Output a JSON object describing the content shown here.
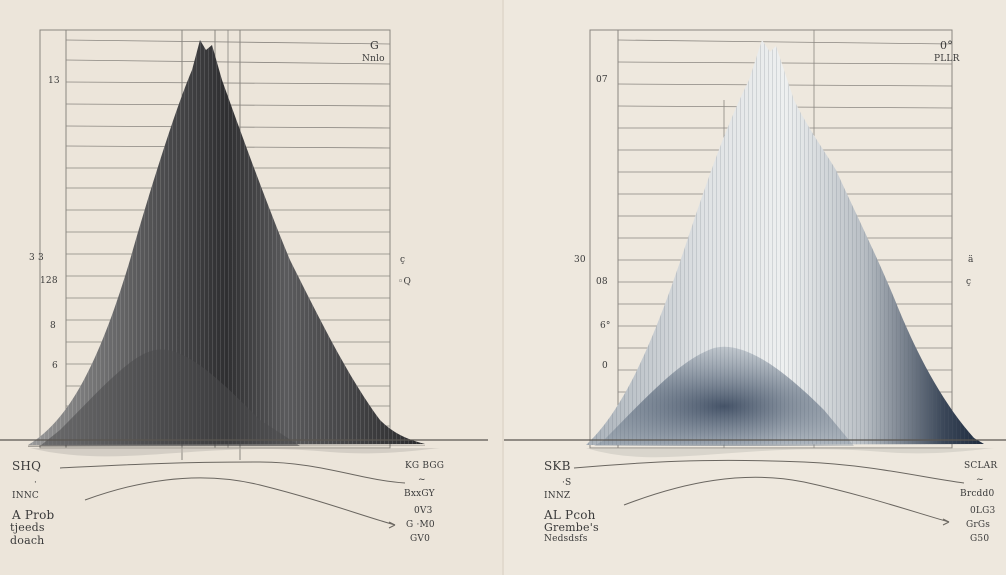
{
  "left": {
    "top_right": [
      "G",
      "Nnlo"
    ],
    "left_ticks": [
      "13",
      "3 3",
      "128",
      "8",
      "6"
    ],
    "right_ticks": [
      "ç",
      "◦Q"
    ],
    "bottom_left": [
      "SHQ",
      "·",
      "INNC",
      "A Prob",
      "tjeeds",
      "doach"
    ],
    "bottom_right": [
      "KG BGG",
      "~",
      "BxxGY",
      "0V3",
      "G ·M0",
      "GV0"
    ]
  },
  "right": {
    "top_right": [
      "0°",
      "PLLR"
    ],
    "left_ticks": [
      "07",
      "30",
      "08",
      "6°",
      "0"
    ],
    "right_ticks": [
      "ä",
      "ç"
    ],
    "bottom_left": [
      "SKB",
      "·S",
      "INNZ",
      "AL Pcoh",
      "Grembe's",
      "Nedsdsfs"
    ],
    "bottom_right": [
      "SCLAR",
      "~",
      "Brcdd0",
      "0LG3",
      "GrGs",
      "G50"
    ]
  },
  "colors": {
    "left_peak_dark": "#2a2a2c",
    "left_peak_mid": "#6c6c6e",
    "right_peak_dark": "#1d2a3d",
    "right_peak_light": "#c4c8cc"
  }
}
